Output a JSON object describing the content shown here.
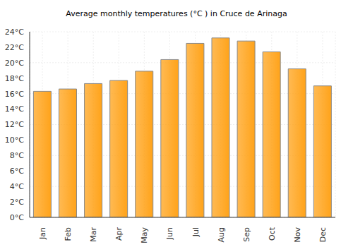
{
  "chart_data": {
    "type": "bar",
    "title": "Average monthly temperatures (°C ) in Cruce de Arinaga",
    "categories": [
      "Jan",
      "Feb",
      "Mar",
      "Apr",
      "May",
      "Jun",
      "Jul",
      "Aug",
      "Sep",
      "Oct",
      "Nov",
      "Dec"
    ],
    "values": [
      16.3,
      16.6,
      17.3,
      17.7,
      18.9,
      20.4,
      22.5,
      23.2,
      22.8,
      21.4,
      19.2,
      17.0
    ],
    "color": "#ffa31a",
    "ylim": [
      0,
      24
    ],
    "yticks": [
      {
        "value": 0,
        "label": "0°C"
      },
      {
        "value": 2,
        "label": "2°C"
      },
      {
        "value": 4,
        "label": "4°C"
      },
      {
        "value": 6,
        "label": "6°C"
      },
      {
        "value": 8,
        "label": "8°C"
      },
      {
        "value": 10,
        "label": "10°C"
      },
      {
        "value": 12,
        "label": "12°C"
      },
      {
        "value": 14,
        "label": "14°C"
      },
      {
        "value": 16,
        "label": "16°C"
      },
      {
        "value": 18,
        "label": "18°C"
      },
      {
        "value": 20,
        "label": "20°C"
      },
      {
        "value": 22,
        "label": "22°C"
      },
      {
        "value": 24,
        "label": "24°C"
      }
    ],
    "grid": true
  }
}
